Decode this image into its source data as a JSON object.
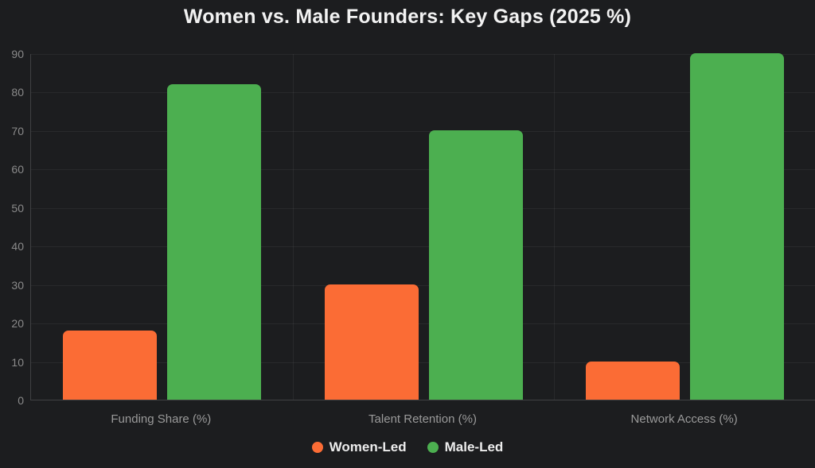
{
  "page": {
    "background_color": "#1c1d1f"
  },
  "chart_data": {
    "type": "bar",
    "title": "Women vs. Male Founders: Key Gaps (2025 %)",
    "categories": [
      "Funding Share (%)",
      "Talent Retention (%)",
      "Network Access (%)"
    ],
    "series": [
      {
        "name": "Women-Led",
        "color": "#fb6c35",
        "values": [
          18,
          30,
          10
        ]
      },
      {
        "name": "Male-Led",
        "color": "#4caf50",
        "values": [
          82,
          70,
          90
        ]
      }
    ],
    "xlabel": "",
    "ylabel": "",
    "ylim": [
      0,
      90
    ],
    "yticks": [
      0,
      10,
      20,
      30,
      40,
      50,
      60,
      70,
      80,
      90
    ],
    "grid": true,
    "legend_position": "bottom",
    "legend": [
      "Women-Led",
      "Male-Led"
    ]
  }
}
